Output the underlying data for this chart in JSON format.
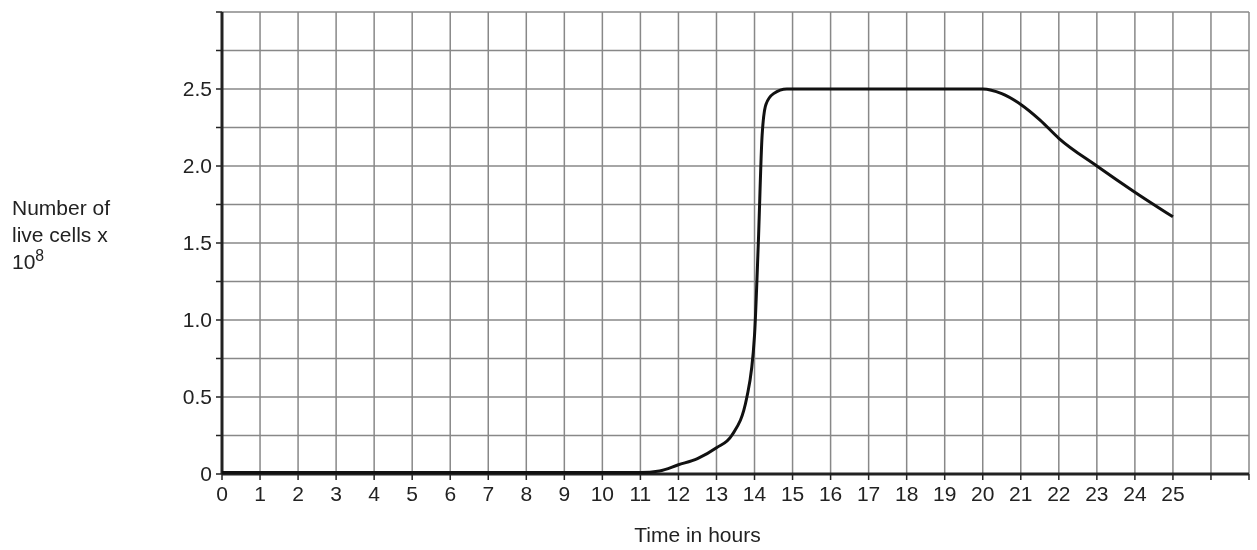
{
  "chart_data": {
    "type": "line",
    "xlabel": "Time in hours",
    "ylabel": "Number of live cells x 10$^{8}$",
    "x": [
      0,
      11,
      11.5,
      12,
      12.5,
      13,
      13.4,
      13.8,
      14,
      14.1,
      14.2,
      14.3,
      14.5,
      14.85,
      20,
      20.5,
      21,
      21.5,
      22,
      23,
      24,
      25
    ],
    "series": [
      {
        "color": "#111111",
        "values": [
          0.01,
          0.01,
          0.02,
          0.06,
          0.1,
          0.17,
          0.25,
          0.5,
          0.9,
          1.5,
          2.2,
          2.4,
          2.47,
          2.5,
          2.5,
          2.47,
          2.4,
          2.3,
          2.18,
          2.0,
          1.83,
          1.67
        ]
      }
    ],
    "xlim": [
      0,
      27
    ],
    "ylim": [
      0,
      3
    ],
    "xticks": [
      0,
      1,
      2,
      3,
      4,
      5,
      6,
      7,
      8,
      9,
      10,
      11,
      12,
      13,
      14,
      15,
      16,
      17,
      18,
      19,
      20,
      21,
      22,
      23,
      24,
      25,
      {
        "value": 26,
        "label": null
      },
      {
        "value": 27,
        "label": null
      }
    ],
    "yticks": [
      {
        "value": 0,
        "label": "0"
      },
      {
        "value": 0.25,
        "label": null
      },
      {
        "value": 0.5,
        "label": "0.5"
      },
      {
        "value": 0.75,
        "label": null
      },
      {
        "value": 1,
        "label": "1.0"
      },
      {
        "value": 1.25,
        "label": null
      },
      {
        "value": 1.5,
        "label": "1.5"
      },
      {
        "value": 1.75,
        "label": null
      },
      {
        "value": 2,
        "label": "2.0"
      },
      {
        "value": 2.25,
        "label": null
      },
      {
        "value": 2.5,
        "label": "2.5"
      },
      {
        "value": 2.75,
        "label": null
      },
      {
        "value": 3,
        "label": null
      }
    ],
    "grid": true,
    "marker": "none",
    "line_style": "solid"
  }
}
